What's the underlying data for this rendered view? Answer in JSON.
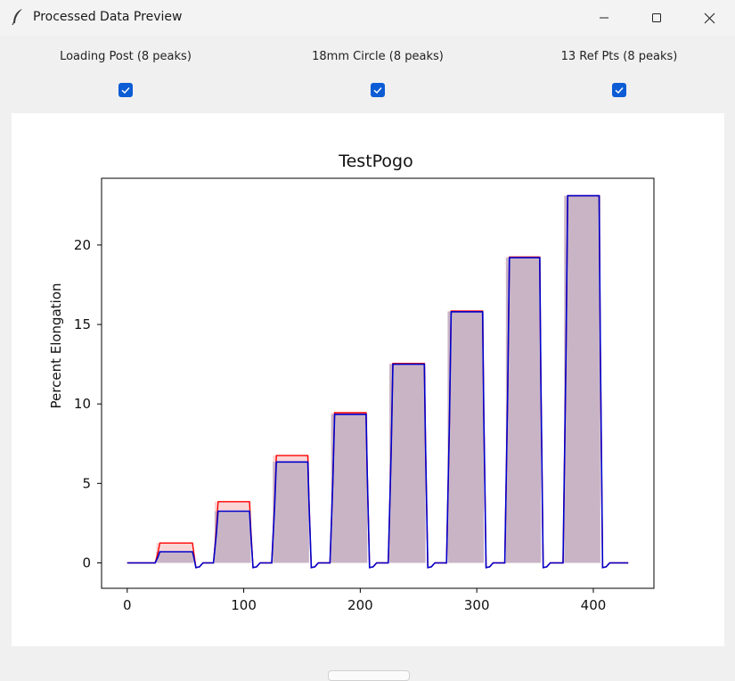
{
  "window": {
    "title": "Processed Data Preview",
    "icon": "feather-icon",
    "controls": [
      "minimize-icon",
      "maximize-icon",
      "close-icon"
    ]
  },
  "toggles": [
    {
      "label": "Loading Post (8 peaks)",
      "checked": true
    },
    {
      "label": "18mm Circle (8 peaks)",
      "checked": true
    },
    {
      "label": "13 Ref Pts (8 peaks)",
      "checked": true
    }
  ],
  "chart_data": {
    "type": "line",
    "title": "TestPogo",
    "xlabel": "",
    "ylabel": "Percent Elongation",
    "xlim": [
      -22,
      452
    ],
    "ylim": [
      -1.6,
      24.2
    ],
    "xticks": [
      0,
      100,
      200,
      300,
      400
    ],
    "yticks": [
      0,
      5,
      10,
      15,
      20
    ],
    "grid": false,
    "colors": {
      "red": "#ff0000",
      "blue": "#0000cc",
      "fill": "#b8a8c0"
    },
    "peaks": [
      {
        "start": 25,
        "end": 57,
        "red": 1.25,
        "blue": 0.7
      },
      {
        "start": 75,
        "end": 106,
        "red": 3.85,
        "blue": 3.25
      },
      {
        "start": 125,
        "end": 156,
        "red": 6.75,
        "blue": 6.35
      },
      {
        "start": 175,
        "end": 206,
        "red": 9.45,
        "blue": 9.35
      },
      {
        "start": 225,
        "end": 256,
        "red": 12.55,
        "blue": 12.5
      },
      {
        "start": 275,
        "end": 306,
        "red": 15.85,
        "blue": 15.8
      },
      {
        "start": 325,
        "end": 355,
        "red": 19.25,
        "blue": 19.2
      },
      {
        "start": 375,
        "end": 406,
        "red": 23.1,
        "blue": 23.1
      }
    ],
    "x_end": 430
  }
}
